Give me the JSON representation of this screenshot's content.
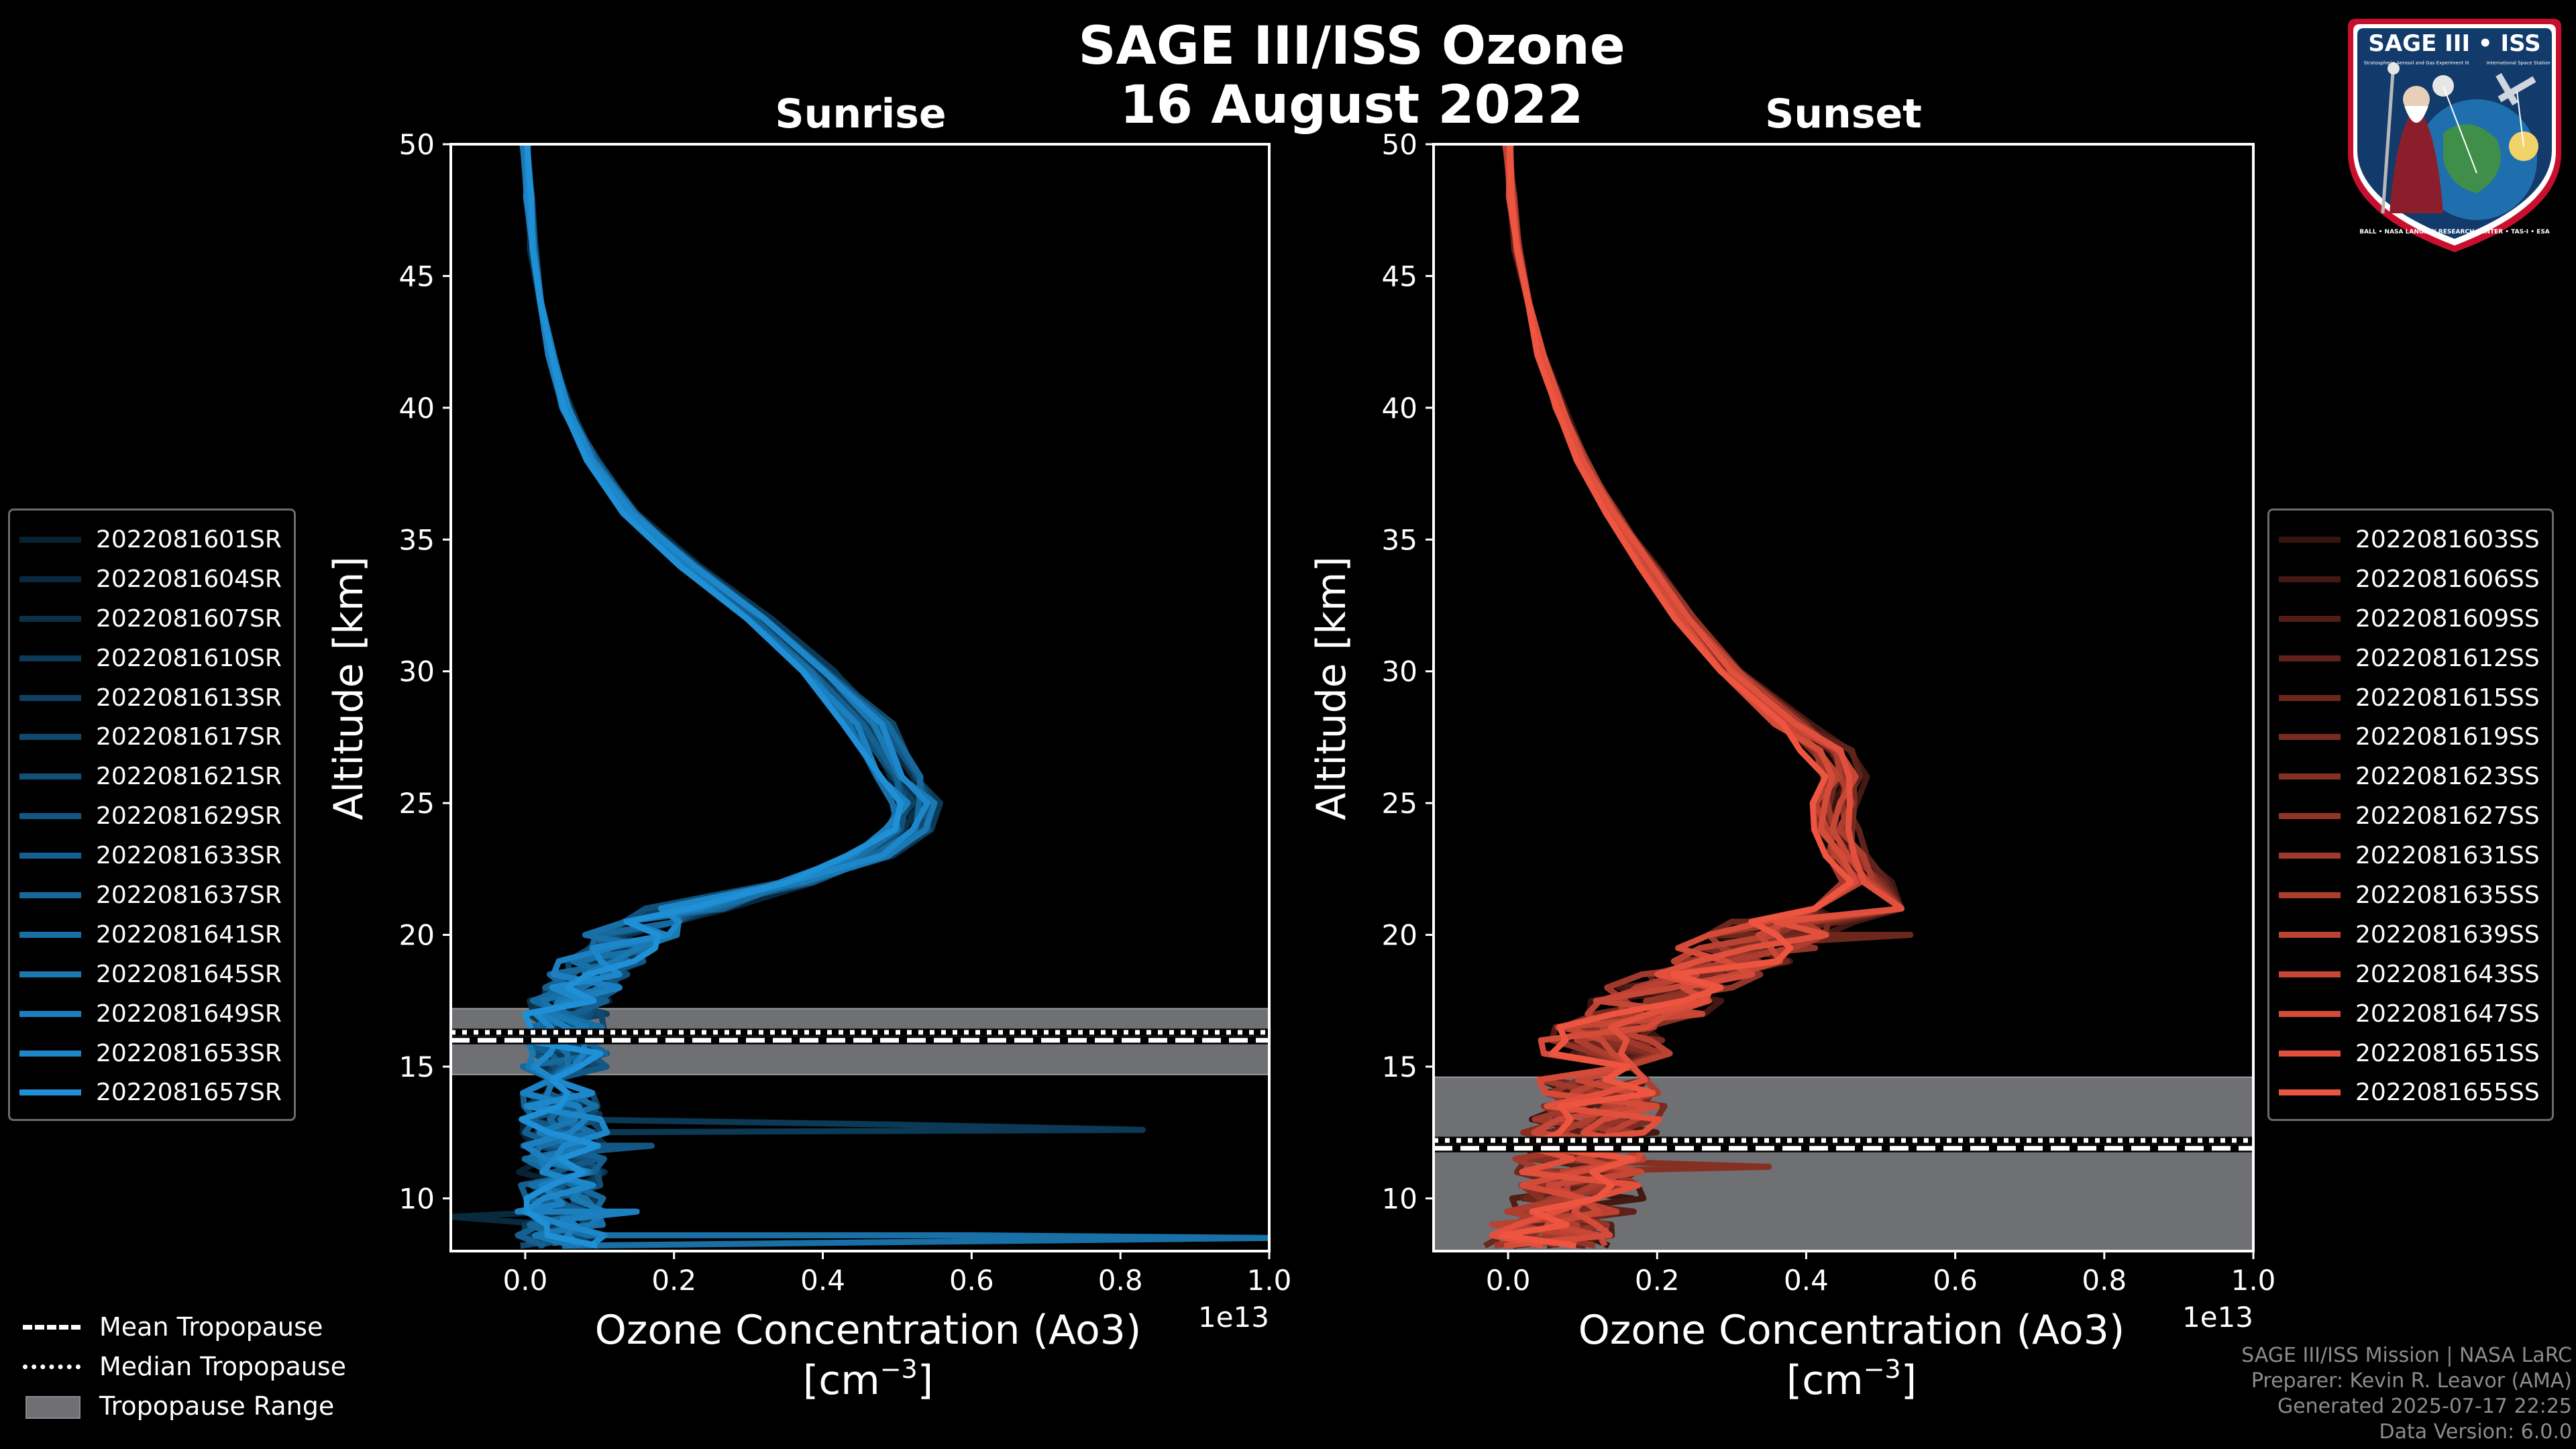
{
  "figure": {
    "title_line1": "SAGE III/ISS Ozone",
    "title_line2": "16 August 2022"
  },
  "badge": {
    "title": "SAGE III • ISS",
    "subtitle": "Stratospheric Aerosol and Gas Experiment III",
    "subtitle2": "International Space Station",
    "ring_text": "BALL • NASA LANGLEY RESEARCH CENTER • TAS-I • ESA"
  },
  "credits": {
    "line1": "SAGE III/ISS Mission | NASA LaRC",
    "line2": "Preparer: Kevin R. Leavor (AMA)",
    "line3": "Generated 2025-07-17 22:25",
    "line4": "Data Version: 6.0.0"
  },
  "trop_legend": {
    "mean": "Mean Tropopause",
    "median": "Median Tropopause",
    "range": "Tropopause Range"
  },
  "colors": {
    "sunrise": "#1f8fd6",
    "sunset": "#ee5540",
    "range_fill": "#6e7074",
    "background": "#000000"
  },
  "chart_data": [
    {
      "type": "line",
      "title": "Sunrise",
      "xlabel": "Ozone Concentration (Ao3)",
      "xunit": "[cm",
      "xunit_sup": "−3",
      "xunit_end": "]",
      "ylabel": "Altitude [km]",
      "offset_label": "1e13",
      "xlim": [
        -0.1,
        1.0
      ],
      "ylim": [
        8,
        50
      ],
      "xticks": [
        "0.0",
        "0.2",
        "0.4",
        "0.6",
        "0.8",
        "1.0"
      ],
      "yticks": [
        "10",
        "15",
        "20",
        "25",
        "30",
        "35",
        "40",
        "45",
        "50"
      ],
      "tropopause": {
        "mean": 16.0,
        "median": 16.3,
        "range": [
          14.7,
          17.2
        ]
      },
      "legend": [
        "2022081601SR",
        "2022081604SR",
        "2022081607SR",
        "2022081610SR",
        "2022081613SR",
        "2022081617SR",
        "2022081621SR",
        "2022081629SR",
        "2022081633SR",
        "2022081637SR",
        "2022081641SR",
        "2022081645SR",
        "2022081649SR",
        "2022081653SR",
        "2022081657SR"
      ],
      "base_profile": [
        [
          50,
          0.0
        ],
        [
          48,
          0.005
        ],
        [
          46,
          0.01
        ],
        [
          44,
          0.02
        ],
        [
          42,
          0.035
        ],
        [
          40,
          0.055
        ],
        [
          38,
          0.09
        ],
        [
          36,
          0.14
        ],
        [
          34,
          0.22
        ],
        [
          32,
          0.31
        ],
        [
          30,
          0.39
        ],
        [
          28,
          0.46
        ],
        [
          26,
          0.5
        ],
        [
          25,
          0.52
        ],
        [
          24,
          0.51
        ],
        [
          23,
          0.46
        ],
        [
          22,
          0.36
        ],
        [
          21,
          0.22
        ],
        [
          20,
          0.14
        ],
        [
          19,
          0.1
        ],
        [
          18,
          0.075
        ],
        [
          17,
          0.055
        ],
        [
          16,
          0.05
        ],
        [
          15,
          0.05
        ],
        [
          14,
          0.05
        ],
        [
          13,
          0.05
        ],
        [
          12,
          0.05
        ],
        [
          11,
          0.05
        ],
        [
          10,
          0.05
        ],
        [
          9,
          0.05
        ],
        [
          8.2,
          0.05
        ]
      ],
      "spikes": [
        {
          "series": 3,
          "points": [
            [
              13.2,
              0.1
            ],
            [
              12.8,
              0.5
            ],
            [
              12.6,
              0.83
            ],
            [
              12.4,
              0.1
            ]
          ]
        },
        {
          "series": 7,
          "points": [
            [
              12.4,
              0.05
            ],
            [
              12.0,
              0.17
            ],
            [
              11.7,
              0.05
            ]
          ]
        },
        {
          "series": 10,
          "points": [
            [
              8.9,
              0.05
            ],
            [
              8.6,
              0.6
            ],
            [
              8.5,
              1.0
            ]
          ]
        },
        {
          "series": 1,
          "points": [
            [
              9.6,
              0.05
            ],
            [
              9.3,
              -0.1
            ]
          ]
        },
        {
          "series": 12,
          "points": [
            [
              9.8,
              0.05
            ],
            [
              9.5,
              0.15
            ],
            [
              9.2,
              0.05
            ]
          ]
        }
      ],
      "spread": 0.06
    },
    {
      "type": "line",
      "title": "Sunset",
      "xlabel": "Ozone Concentration (Ao3)",
      "xunit": "[cm",
      "xunit_sup": "−3",
      "xunit_end": "]",
      "ylabel": "Altitude [km]",
      "offset_label": "1e13",
      "xlim": [
        -0.1,
        1.0
      ],
      "ylim": [
        8,
        50
      ],
      "xticks": [
        "0.0",
        "0.2",
        "0.4",
        "0.6",
        "0.8",
        "1.0"
      ],
      "yticks": [
        "10",
        "15",
        "20",
        "25",
        "30",
        "35",
        "40",
        "45",
        "50"
      ],
      "tropopause": {
        "mean": 11.9,
        "median": 12.2,
        "range": [
          8,
          14.6
        ]
      },
      "legend": [
        "2022081603SS",
        "2022081606SS",
        "2022081609SS",
        "2022081612SS",
        "2022081615SS",
        "2022081619SS",
        "2022081623SS",
        "2022081627SS",
        "2022081631SS",
        "2022081635SS",
        "2022081639SS",
        "2022081643SS",
        "2022081647SS",
        "2022081651SS",
        "2022081655SS"
      ],
      "base_profile": [
        [
          50,
          0.0
        ],
        [
          48,
          0.005
        ],
        [
          46,
          0.012
        ],
        [
          44,
          0.025
        ],
        [
          42,
          0.045
        ],
        [
          40,
          0.07
        ],
        [
          38,
          0.1
        ],
        [
          36,
          0.14
        ],
        [
          34,
          0.19
        ],
        [
          32,
          0.24
        ],
        [
          30,
          0.3
        ],
        [
          28,
          0.38
        ],
        [
          27,
          0.43
        ],
        [
          26,
          0.45
        ],
        [
          25,
          0.44
        ],
        [
          24,
          0.44
        ],
        [
          23,
          0.46
        ],
        [
          22,
          0.48
        ],
        [
          21,
          0.44
        ],
        [
          20,
          0.36
        ],
        [
          19,
          0.3
        ],
        [
          18,
          0.22
        ],
        [
          17,
          0.17
        ],
        [
          16,
          0.14
        ],
        [
          15,
          0.13
        ],
        [
          14,
          0.12
        ],
        [
          13,
          0.12
        ],
        [
          12,
          0.1
        ],
        [
          11,
          0.1
        ],
        [
          10,
          0.09
        ],
        [
          9,
          0.07
        ],
        [
          8.2,
          0.06
        ]
      ],
      "spikes": [
        {
          "series": 4,
          "points": [
            [
              20.5,
              0.3
            ],
            [
              20.0,
              0.54
            ],
            [
              19.6,
              0.3
            ]
          ]
        },
        {
          "series": 6,
          "points": [
            [
              11.8,
              0.12
            ],
            [
              11.2,
              0.35
            ],
            [
              10.6,
              0.1
            ]
          ]
        }
      ],
      "spread": 0.09
    }
  ]
}
